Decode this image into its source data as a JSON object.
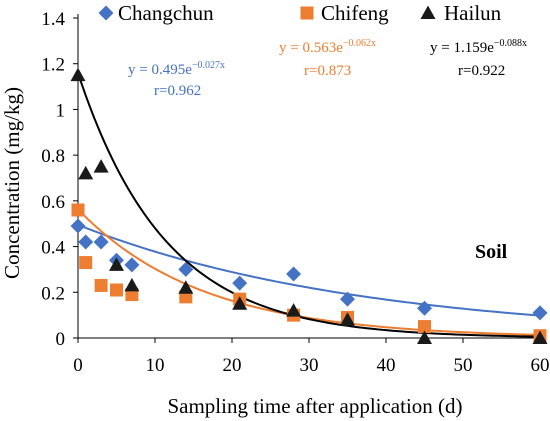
{
  "chart_data": {
    "type": "scatter",
    "xlabel": "Sampling time after application (d)",
    "ylabel": "Concentration (mg/kg)",
    "xlim": [
      0,
      60
    ],
    "ylim": [
      0,
      1.4
    ],
    "xticks": [
      "0",
      "10",
      "20",
      "30",
      "40",
      "50",
      "60"
    ],
    "yticks": [
      "0",
      "0.2",
      "0.4",
      "0.6",
      "0.8",
      "1",
      "1.2",
      "1.4"
    ],
    "grid": false,
    "legend_position": "top",
    "panel_label": "Soil",
    "series": [
      {
        "name": "Changchun",
        "marker": "diamond",
        "color": "#4472c4",
        "fit_color": "#4472c4",
        "fit": {
          "a": 0.495,
          "b": 0.027
        },
        "equation": {
          "prefix": "y = 0.495e",
          "exponent": "−0.027x"
        },
        "r_text": "r=0.962",
        "points": [
          [
            0,
            0.49
          ],
          [
            1,
            0.42
          ],
          [
            3,
            0.42
          ],
          [
            5,
            0.34
          ],
          [
            7,
            0.32
          ],
          [
            14,
            0.3
          ],
          [
            21,
            0.24
          ],
          [
            28,
            0.28
          ],
          [
            35,
            0.17
          ],
          [
            45,
            0.13
          ],
          [
            60,
            0.11
          ]
        ]
      },
      {
        "name": "Chifeng",
        "marker": "square",
        "color": "#ed7d31",
        "fit_color": "#ed7d31",
        "fit": {
          "a": 0.563,
          "b": 0.062
        },
        "equation": {
          "prefix": "y = 0.563e",
          "exponent": "−0.062x"
        },
        "r_text": "r=0.873",
        "points": [
          [
            0,
            0.56
          ],
          [
            1,
            0.33
          ],
          [
            3,
            0.23
          ],
          [
            5,
            0.21
          ],
          [
            7,
            0.19
          ],
          [
            14,
            0.18
          ],
          [
            21,
            0.17
          ],
          [
            28,
            0.1
          ],
          [
            35,
            0.09
          ],
          [
            45,
            0.05
          ],
          [
            60,
            0.01
          ]
        ]
      },
      {
        "name": "Hailun",
        "marker": "triangle",
        "color": "#1a1a1a",
        "fit_color": "#000000",
        "fit": {
          "a": 1.159,
          "b": 0.088
        },
        "equation": {
          "prefix": "y = 1.159e",
          "exponent": "−0.088x"
        },
        "r_text": "r=0.922",
        "points": [
          [
            0,
            1.15
          ],
          [
            1,
            0.72
          ],
          [
            3,
            0.75
          ],
          [
            5,
            0.32
          ],
          [
            7,
            0.23
          ],
          [
            14,
            0.22
          ],
          [
            21,
            0.15
          ],
          [
            28,
            0.12
          ],
          [
            35,
            0.08
          ],
          [
            45,
            0.0
          ],
          [
            60,
            0.0
          ]
        ]
      }
    ]
  }
}
